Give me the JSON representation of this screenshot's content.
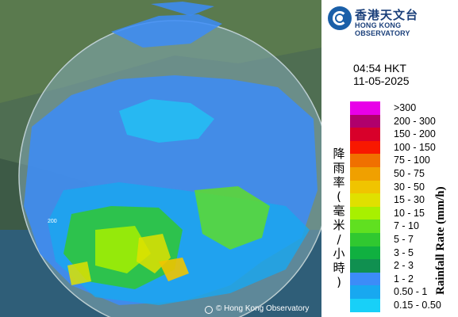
{
  "logo": {
    "zh": "香港天文台",
    "en": "HONG KONG OBSERVATORY"
  },
  "time": "04:54 HKT",
  "date": "11-05-2025",
  "legend": {
    "title_zh": "降雨率(毫米/小時)",
    "title_en": "Rainfall Rate (mm/h)",
    "items": [
      {
        "label": ">300",
        "color": "#e800e8"
      },
      {
        "label": "200 - 300",
        "color": "#b0006c"
      },
      {
        "label": "150 - 200",
        "color": "#d8002a"
      },
      {
        "label": "100 - 150",
        "color": "#f81800"
      },
      {
        "label": "75 - 100",
        "color": "#f07000"
      },
      {
        "label": "50 - 75",
        "color": "#f0a000"
      },
      {
        "label": "30 - 50",
        "color": "#f0c400"
      },
      {
        "label": "15 - 30",
        "color": "#e0e000"
      },
      {
        "label": "10 - 15",
        "color": "#a8f000"
      },
      {
        "label": "7 - 10",
        "color": "#60e020"
      },
      {
        "label": "5 - 7",
        "color": "#30c830"
      },
      {
        "label": "3 - 5",
        "color": "#10b040"
      },
      {
        "label": "2 - 3",
        "color": "#109050"
      },
      {
        "label": "1 - 2",
        "color": "#3c8cf8"
      },
      {
        "label": "0.50 - 1",
        "color": "#18a8f0"
      },
      {
        "label": "0.15 - 0.50",
        "color": "#18d0f8"
      }
    ]
  },
  "map": {
    "range_label": "200",
    "credit": "© Hong Kong Observatory"
  }
}
